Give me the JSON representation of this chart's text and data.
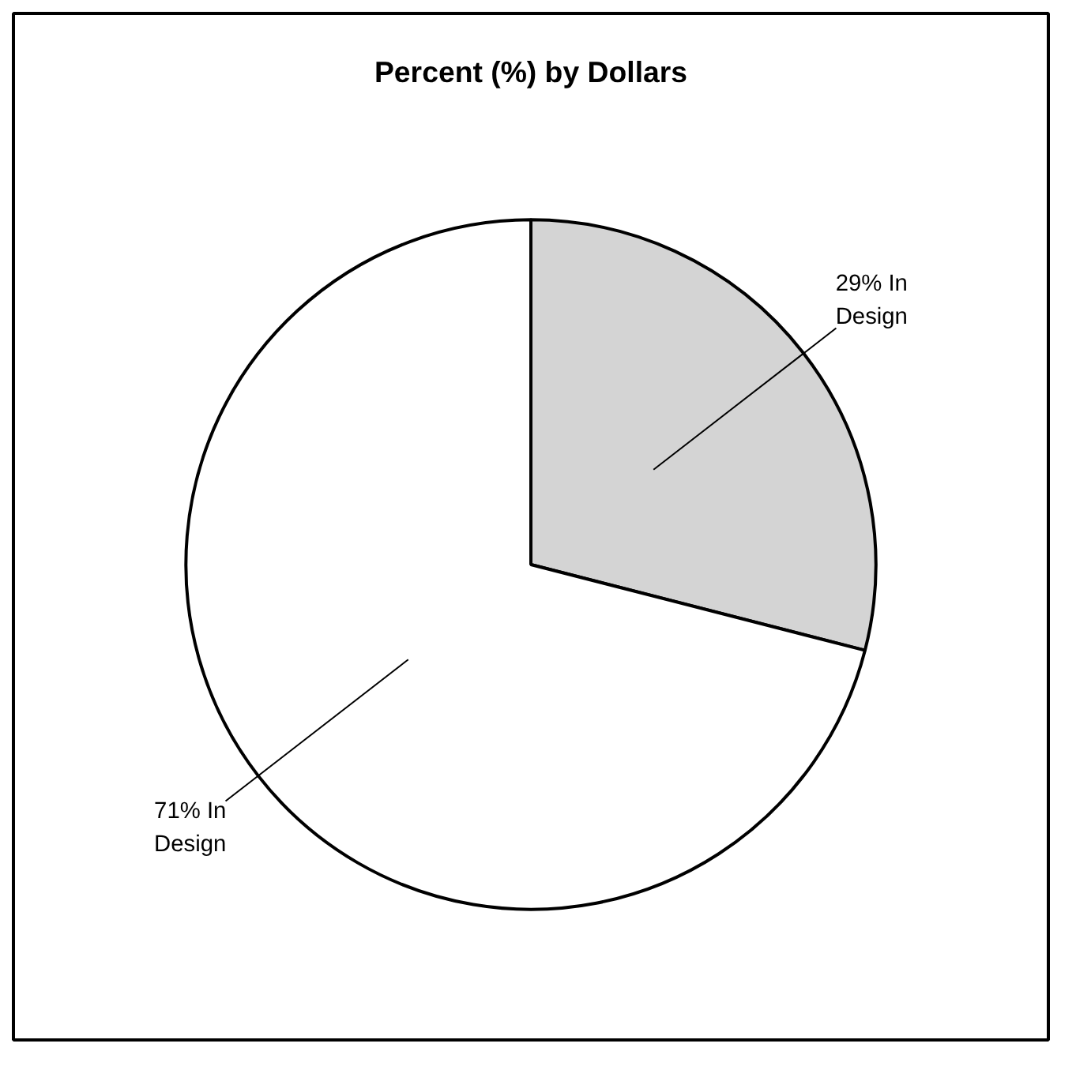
{
  "chart_data": {
    "type": "pie",
    "title": "Percent (%) by Dollars",
    "categories": [
      "29% In Design",
      "71% In Design"
    ],
    "values": [
      29,
      71
    ],
    "colors": [
      "#d4d4d4",
      "#ffffff"
    ]
  }
}
